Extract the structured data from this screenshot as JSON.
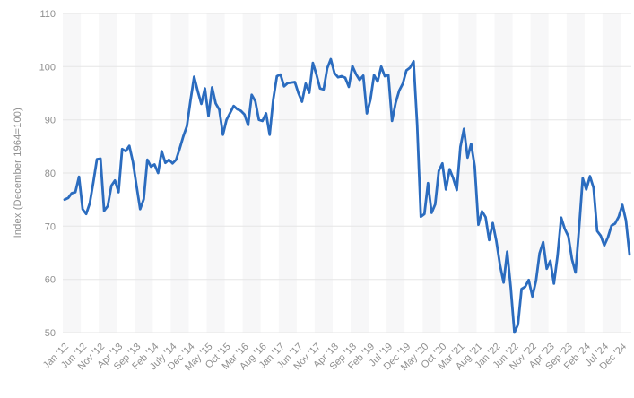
{
  "chart_data": {
    "type": "line",
    "title": "",
    "xlabel": "",
    "ylabel": "Index (December 1964=100)",
    "frequency": "monthly",
    "period": {
      "first_tick": "Jan '12",
      "last_tick": "Dec '24"
    },
    "ylim": [
      50,
      110
    ],
    "yticks": [
      110,
      100,
      90,
      80,
      70,
      60,
      50
    ],
    "x_tick_every_n_points": 5,
    "x_tick_labels": [
      "Jan '12",
      "Jun '12",
      "Nov '12",
      "Apr '13",
      "Sep '13",
      "Feb '14",
      "July '14",
      "Dec '14",
      "May '15",
      "Oct '15",
      "Mar '16",
      "Aug '16",
      "Jan '17",
      "Jun '17",
      "Nov '17",
      "Apr '18",
      "Sep '18",
      "Feb '19",
      "Jul '19",
      "Dec '19",
      "May '20",
      "Oct '20",
      "Mar '21",
      "Aug '21",
      "Jan '22",
      "Jun '22",
      "Nov '22",
      "Apr '23",
      "Sep '23",
      "Feb '24",
      "Jul '24",
      "Dec '24"
    ],
    "values": [
      75.0,
      75.3,
      76.2,
      76.4,
      79.3,
      73.2,
      72.3,
      74.3,
      78.3,
      82.6,
      82.7,
      72.9,
      73.8,
      77.6,
      78.6,
      76.4,
      84.5,
      84.1,
      85.1,
      82.1,
      77.5,
      73.2,
      75.1,
      82.5,
      81.2,
      81.6,
      80.0,
      84.1,
      81.9,
      82.5,
      81.8,
      82.5,
      84.6,
      86.9,
      88.8,
      93.6,
      98.1,
      95.4,
      93.0,
      95.9,
      90.7,
      96.1,
      93.1,
      91.9,
      87.2,
      90.0,
      91.3,
      92.6,
      92.0,
      91.7,
      91.0,
      89.0,
      94.7,
      93.5,
      90.0,
      89.8,
      91.2,
      87.2,
      93.8,
      98.2,
      98.5,
      96.3,
      96.9,
      97.0,
      97.1,
      95.0,
      93.4,
      96.8,
      95.1,
      100.7,
      98.5,
      95.9,
      95.7,
      99.7,
      101.4,
      98.8,
      98.0,
      98.2,
      97.9,
      96.2,
      100.1,
      98.6,
      97.5,
      98.3,
      91.2,
      93.8,
      98.4,
      97.2,
      100.0,
      98.2,
      98.4,
      89.8,
      93.2,
      95.5,
      96.8,
      99.3,
      99.8,
      101.0,
      89.1,
      71.8,
      72.3,
      78.1,
      72.5,
      74.1,
      80.4,
      81.8,
      76.9,
      80.7,
      79.0,
      76.8,
      84.9,
      88.3,
      82.9,
      85.5,
      81.2,
      70.3,
      72.8,
      71.7,
      67.4,
      70.6,
      67.2,
      62.8,
      59.4,
      65.2,
      58.4,
      50.0,
      51.5,
      58.2,
      58.6,
      59.9,
      56.8,
      59.7,
      64.9,
      67.0,
      62.0,
      63.5,
      59.2,
      64.4,
      71.6,
      69.5,
      68.1,
      63.8,
      61.3,
      69.7,
      79.0,
      76.9,
      79.4,
      77.2,
      69.1,
      68.2,
      66.4,
      67.9,
      70.1,
      70.5,
      71.8,
      74.0,
      71.1,
      64.7
    ],
    "grid": "horizontal",
    "legend": "none",
    "colors": {
      "line": "#2b6cbf",
      "grid_line": "#e5e5e5",
      "band": "#f7f7f8",
      "axis_text": "#8f8f8f",
      "background": "#ffffff"
    }
  }
}
